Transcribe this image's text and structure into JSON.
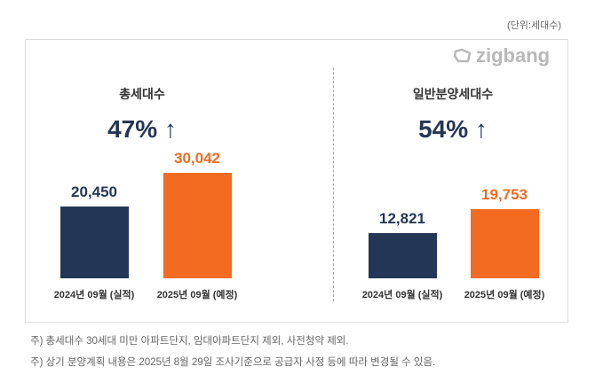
{
  "unit_label": "(단위:세대수)",
  "logo_text": "zigbang",
  "colors": {
    "actual": "#243656",
    "planned": "#f26b21"
  },
  "chart_data": [
    {
      "type": "bar",
      "title": "총세대수",
      "change_label": "47% ↑",
      "categories": [
        "2024년 09월 (실적)",
        "2025년 09월 (예정)"
      ],
      "values": [
        20450,
        30042
      ],
      "value_labels": [
        "20,450",
        "30,042"
      ]
    },
    {
      "type": "bar",
      "title": "일반분양세대수",
      "change_label": "54% ↑",
      "categories": [
        "2024년 09월 (실적)",
        "2025년 09월 (예정)"
      ],
      "values": [
        12821,
        19753
      ],
      "value_labels": [
        "12,821",
        "19,753"
      ]
    }
  ],
  "notes": [
    "주) 총세대수 30세대 미만 아파트단지, 임대아파트단지 제외, 사전청약 제외.",
    "주) 상기 분양계획 내용은 2025년 8월 29일 조사기준으로 공급자 사정 등에 따라 변경될 수 있음."
  ]
}
